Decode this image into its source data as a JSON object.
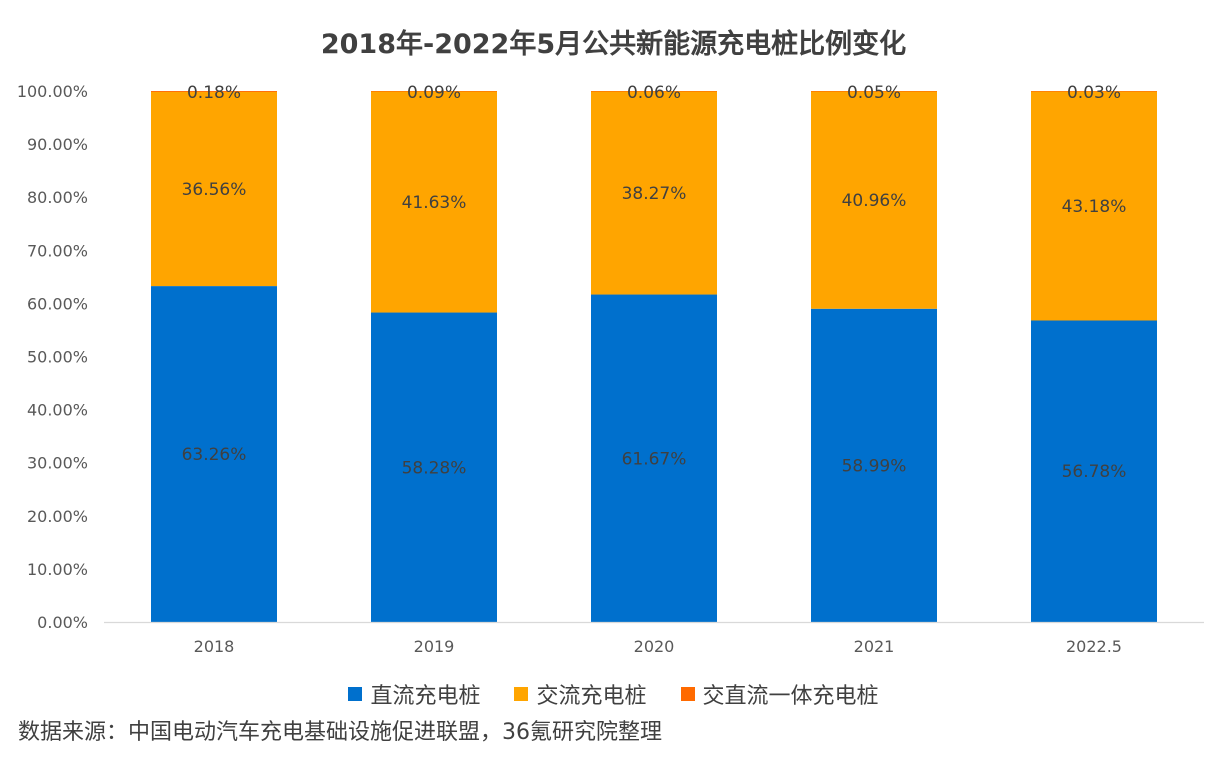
{
  "chart_data": {
    "type": "bar",
    "stacked": true,
    "title": "2018年-2022年5月公共新能源充电桩比例变化",
    "categories": [
      "2018",
      "2019",
      "2020",
      "2021",
      "2022.5"
    ],
    "series": [
      {
        "name": "直流充电桩",
        "values": [
          63.26,
          58.28,
          61.67,
          58.99,
          56.78
        ],
        "labels": [
          "63.26%",
          "58.28%",
          "61.67%",
          "58.99%",
          "56.78%"
        ],
        "color": "#0070CD"
      },
      {
        "name": "交流充电桩",
        "values": [
          36.56,
          41.63,
          38.27,
          40.96,
          43.18
        ],
        "labels": [
          "36.56%",
          "41.63%",
          "38.27%",
          "40.96%",
          "43.18%"
        ],
        "color": "#FFA500"
      },
      {
        "name": "交直流一体充电桩",
        "values": [
          0.18,
          0.09,
          0.06,
          0.05,
          0.03
        ],
        "labels": [
          "0.18%",
          "0.09%",
          "0.06%",
          "0.05%",
          "0.03%"
        ],
        "color": "#FF6A00"
      }
    ],
    "ylim": [
      0,
      100
    ],
    "yticks": [
      "0.00%",
      "10.00%",
      "20.00%",
      "30.00%",
      "40.00%",
      "50.00%",
      "60.00%",
      "70.00%",
      "80.00%",
      "90.00%",
      "100.00%"
    ],
    "grid": false,
    "legend_position": "bottom"
  },
  "source_note": "数据来源：中国电动汽车充电基础设施促进联盟，36氪研究院整理"
}
